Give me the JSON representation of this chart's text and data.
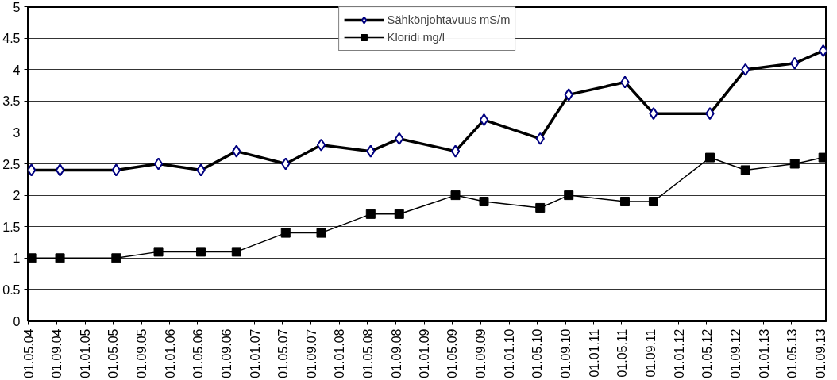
{
  "chart_data": {
    "type": "line",
    "x": [
      "2004-05-15",
      "2004-09-15",
      "2005-05-15",
      "2005-11-13",
      "2006-05-15",
      "2006-10-15",
      "2007-05-15",
      "2007-10-15",
      "2008-05-15",
      "2008-09-15",
      "2009-05-15",
      "2009-09-15",
      "2010-05-15",
      "2010-09-15",
      "2011-05-15",
      "2011-09-15",
      "2012-05-15",
      "2012-10-15",
      "2013-05-15",
      "2013-09-15"
    ],
    "series": [
      {
        "name": "Sähkönjohtavuus mS/m",
        "color": "#000000",
        "marker": "diamond",
        "values": [
          2.4,
          2.4,
          2.4,
          2.5,
          2.4,
          2.7,
          2.5,
          2.8,
          2.7,
          2.9,
          2.7,
          3.2,
          2.9,
          3.6,
          3.8,
          3.3,
          3.3,
          4.0,
          4.1,
          4.3
        ]
      },
      {
        "name": "Kloridi mg/l",
        "color": "#000000",
        "marker": "square",
        "values": [
          1.0,
          1.0,
          1.0,
          1.1,
          1.1,
          1.1,
          1.4,
          1.4,
          1.7,
          1.7,
          2.0,
          1.9,
          1.8,
          2.0,
          1.9,
          1.9,
          2.6,
          2.4,
          2.5,
          2.6
        ]
      }
    ],
    "xlim": [
      "2004-05-01",
      "2013-09-28"
    ],
    "xticks": [
      {
        "value": "2004-05-01",
        "label": "01.05.04"
      },
      {
        "value": "2004-09-01",
        "label": "01.09.04"
      },
      {
        "value": "2005-01-01",
        "label": "01.01.05"
      },
      {
        "value": "2005-05-01",
        "label": "01.05.05"
      },
      {
        "value": "2005-09-01",
        "label": "01.09.05"
      },
      {
        "value": "2006-01-01",
        "label": "01.01.06"
      },
      {
        "value": "2006-05-01",
        "label": "01.05.06"
      },
      {
        "value": "2006-09-01",
        "label": "01.09.06"
      },
      {
        "value": "2007-01-01",
        "label": "01.01.07"
      },
      {
        "value": "2007-05-01",
        "label": "01.05.07"
      },
      {
        "value": "2007-09-01",
        "label": "01.09.07"
      },
      {
        "value": "2008-01-01",
        "label": "01.01.08"
      },
      {
        "value": "2008-05-01",
        "label": "01.05.08"
      },
      {
        "value": "2008-09-01",
        "label": "01.09.08"
      },
      {
        "value": "2009-01-01",
        "label": "01.01.09"
      },
      {
        "value": "2009-05-01",
        "label": "01.05.09"
      },
      {
        "value": "2009-09-01",
        "label": "01.09.09"
      },
      {
        "value": "2010-01-01",
        "label": "01.01.10"
      },
      {
        "value": "2010-05-01",
        "label": "01.05.10"
      },
      {
        "value": "2010-09-01",
        "label": "01.09.10"
      },
      {
        "value": "2011-01-01",
        "label": "01.01.11"
      },
      {
        "value": "2011-05-01",
        "label": "01.05.11"
      },
      {
        "value": "2011-09-01",
        "label": "01.09.11"
      },
      {
        "value": "2012-01-01",
        "label": "01.01.12"
      },
      {
        "value": "2012-05-01",
        "label": "01.05.12"
      },
      {
        "value": "2012-09-01",
        "label": "01.09.12"
      },
      {
        "value": "2013-01-01",
        "label": "01.01.13"
      },
      {
        "value": "2013-05-01",
        "label": "01.05.13"
      },
      {
        "value": "2013-09-01",
        "label": "01.09.13"
      }
    ],
    "ylim": [
      0,
      5
    ],
    "yticks": [
      0,
      0.5,
      1,
      1.5,
      2,
      2.5,
      3,
      3.5,
      4,
      4.5,
      5
    ],
    "grid": "y",
    "legend": "top"
  }
}
